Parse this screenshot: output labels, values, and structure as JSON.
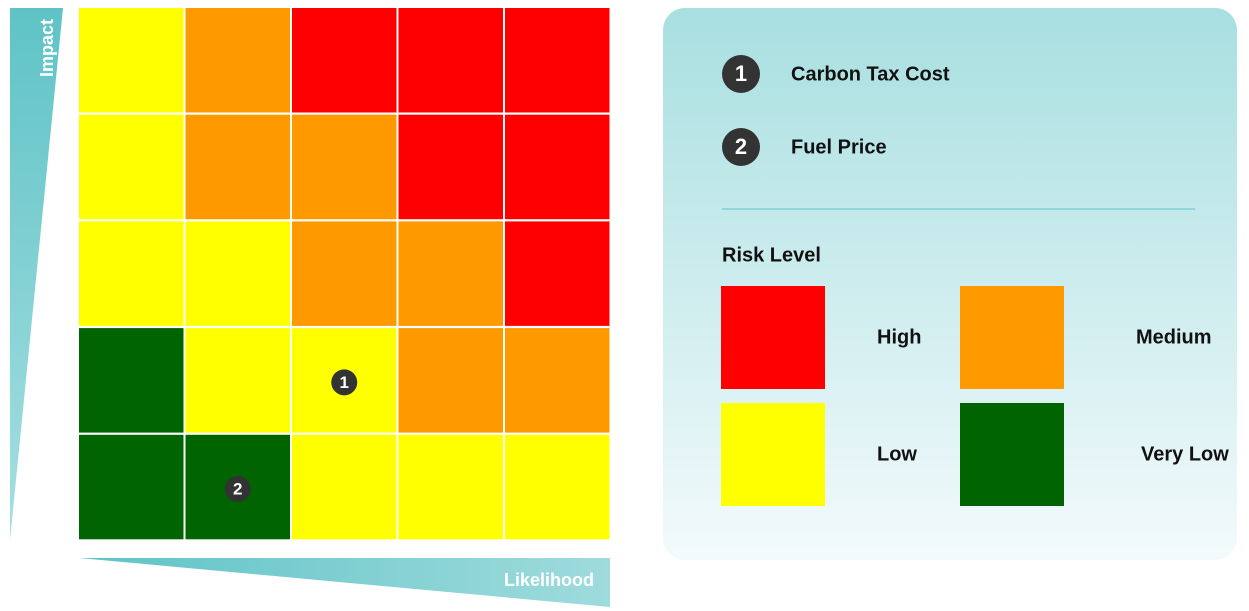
{
  "axes": {
    "y_label": "Impact",
    "x_label": "Likelihood"
  },
  "matrix": [
    [
      "#ffff00",
      "#ff9900",
      "#ff0000",
      "#ff0000",
      "#ff0000"
    ],
    [
      "#ffff00",
      "#ff9900",
      "#ff9900",
      "#ff0000",
      "#ff0000"
    ],
    [
      "#ffff00",
      "#ffff00",
      "#ff9900",
      "#ff9900",
      "#ff0000"
    ],
    [
      "#006400",
      "#ffff00",
      "#ffff00",
      "#ff9900",
      "#ff9900"
    ],
    [
      "#006400",
      "#006400",
      "#ffff00",
      "#ffff00",
      "#ffff00"
    ]
  ],
  "risks": [
    {
      "label": "1",
      "name": "Carbon Tax Cost",
      "likelihood": 3,
      "impact": 2
    },
    {
      "label": "2",
      "name": "Fuel Price",
      "likelihood": 2,
      "impact": 1
    }
  ],
  "legend": {
    "title": "Risk Level",
    "levels": [
      {
        "name": "High",
        "color": "#ff0000"
      },
      {
        "name": "Medium",
        "color": "#ff9900"
      },
      {
        "name": "Low",
        "color": "#ffff00"
      },
      {
        "name": "Very Low",
        "color": "#006400"
      }
    ]
  }
}
